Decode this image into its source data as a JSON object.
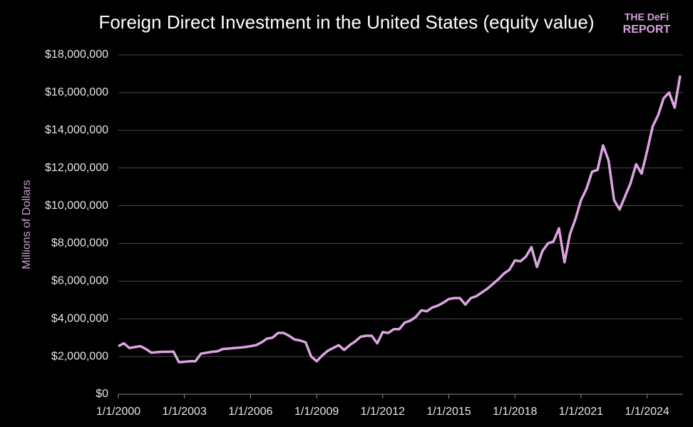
{
  "chart_data": {
    "type": "line",
    "title": "Foreign Direct Investment in the United States (equity value)",
    "ylabel": "Millions of Dollars",
    "logo": [
      "THE DeFi",
      "REPORT"
    ],
    "categories": [
      "1/1/2000",
      null,
      null,
      null,
      null,
      null,
      null,
      null,
      null,
      null,
      null,
      null,
      "1/1/2003",
      null,
      null,
      null,
      null,
      null,
      null,
      null,
      null,
      null,
      null,
      null,
      "1/1/2006",
      null,
      null,
      null,
      null,
      null,
      null,
      null,
      null,
      null,
      null,
      null,
      "1/1/2009",
      null,
      null,
      null,
      null,
      null,
      null,
      null,
      null,
      null,
      null,
      null,
      "1/1/2012",
      null,
      null,
      null,
      null,
      null,
      null,
      null,
      null,
      null,
      null,
      null,
      "1/1/2015",
      null,
      null,
      null,
      null,
      null,
      null,
      null,
      null,
      null,
      null,
      null,
      "1/1/2018",
      null,
      null,
      null,
      null,
      null,
      null,
      null,
      null,
      null,
      null,
      null,
      "1/1/2021",
      null,
      null,
      null,
      null,
      null,
      null,
      null,
      null,
      null,
      null,
      null,
      "1/1/2024",
      null,
      null,
      null,
      null,
      null,
      null
    ],
    "series": [
      {
        "color": "#dca5e0",
        "values": [
          2550000,
          2700000,
          2450000,
          2500000,
          2550000,
          2400000,
          2200000,
          2230000,
          2250000,
          2250000,
          2260000,
          1700000,
          1720000,
          1750000,
          1750000,
          2150000,
          2200000,
          2250000,
          2280000,
          2400000,
          2420000,
          2450000,
          2470000,
          2500000,
          2550000,
          2600000,
          2750000,
          2950000,
          3000000,
          3250000,
          3250000,
          3100000,
          2900000,
          2850000,
          2750000,
          2000000,
          1750000,
          2050000,
          2300000,
          2450000,
          2600000,
          2350000,
          2600000,
          2800000,
          3050000,
          3100000,
          3100000,
          2700000,
          3300000,
          3250000,
          3450000,
          3450000,
          3800000,
          3900000,
          4100000,
          4450000,
          4400000,
          4600000,
          4700000,
          4850000,
          5050000,
          5100000,
          5100000,
          4750000,
          5100000,
          5200000,
          5400000,
          5600000,
          5850000,
          6100000,
          6400000,
          6600000,
          7100000,
          7050000,
          7300000,
          7800000,
          6750000,
          7600000,
          8000000,
          8100000,
          8800000,
          7000000,
          8500000,
          9300000,
          10300000,
          10900000,
          11800000,
          11900000,
          13200000,
          12400000,
          10300000,
          9800000,
          10500000,
          11200000,
          12200000,
          11700000,
          12900000,
          14200000,
          14800000,
          15700000,
          16000000,
          15200000,
          16900000
        ]
      }
    ],
    "ylim": [
      0,
      18000000
    ],
    "yticks": [
      {
        "value": 0,
        "label": "$0"
      },
      {
        "value": 2000000,
        "label": "$2,000,000"
      },
      {
        "value": 4000000,
        "label": "$4,000,000"
      },
      {
        "value": 6000000,
        "label": "$6,000,000"
      },
      {
        "value": 8000000,
        "label": "$8,000,000"
      },
      {
        "value": 10000000,
        "label": "$10,000,000"
      },
      {
        "value": 12000000,
        "label": "$12,000,000"
      },
      {
        "value": 14000000,
        "label": "$14,000,000"
      },
      {
        "value": 16000000,
        "label": "$16,000,000"
      },
      {
        "value": 18000000,
        "label": "$18,000,000"
      }
    ],
    "grid": true
  }
}
